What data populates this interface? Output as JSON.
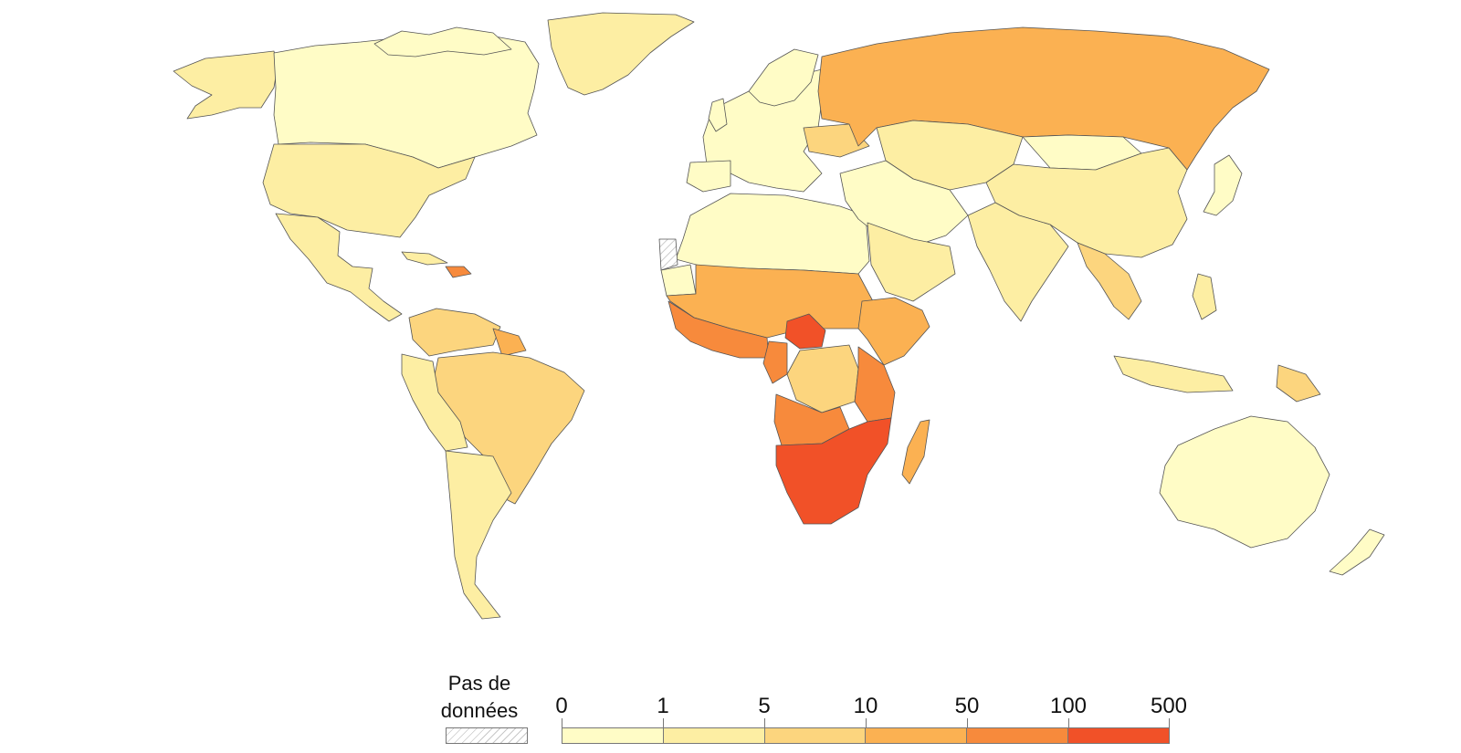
{
  "legend": {
    "nodata_label_line1": "Pas de",
    "nodata_label_line2": "données",
    "ticks": [
      "0",
      "1",
      "5",
      "10",
      "50",
      "100",
      "500"
    ],
    "bin_colors": [
      "#fffcc6",
      "#fdeea3",
      "#fcd57e",
      "#fbb152",
      "#f78a3c",
      "#f15128"
    ]
  },
  "colors": {
    "ocean": "#ffffff",
    "border": "#555555",
    "c0": "#fffcc6",
    "c1": "#fdeea3",
    "c2": "#fcd57e",
    "c3": "#fbb152",
    "c4": "#f78a3c",
    "c5": "#f15128"
  }
}
